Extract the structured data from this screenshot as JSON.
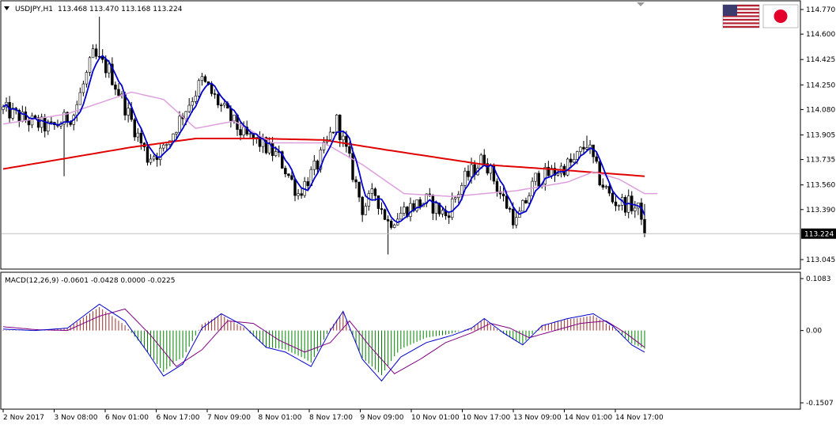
{
  "colors": {
    "background": "#ffffff",
    "candle": "#000000",
    "ma_fast": "#0000cc",
    "ma_mid": "#dda0dd",
    "ma_slow": "#e00000",
    "macd_up": "#a52a2a",
    "macd_down": "#008000",
    "macd_signal": "#800080",
    "macd_line": "#0000cc",
    "price_line": "#c0c0c0"
  },
  "icons": {
    "flag_left": "us-flag-icon",
    "flag_right": "japan-flag-icon"
  },
  "chart_data": [
    {
      "type": "candlestick",
      "title": "USDJPY,H1",
      "ohlc_header": "113.468 113.470 113.168 113.224",
      "ylim": [
        113.045,
        114.77
      ],
      "y_ticks": [
        "114.770",
        "114.600",
        "114.425",
        "114.250",
        "114.080",
        "113.905",
        "113.735",
        "113.560",
        "113.390",
        "113.045"
      ],
      "current_price": "113.224",
      "x_tick_labels": [
        "2 Nov 2017",
        "3 Nov 08:00",
        "6 Nov 01:00",
        "6 Nov 17:00",
        "7 Nov 09:00",
        "8 Nov 01:00",
        "8 Nov 17:00",
        "9 Nov 09:00",
        "10 Nov 01:00",
        "10 Nov 17:00",
        "13 Nov 09:00",
        "14 Nov 01:00",
        "14 Nov 17:00"
      ],
      "bars": 200,
      "close_path": [
        [
          0,
          114.08
        ],
        [
          8,
          114.0
        ],
        [
          15,
          113.95
        ],
        [
          22,
          114.05
        ],
        [
          28,
          114.45
        ],
        [
          33,
          114.35
        ],
        [
          38,
          114.1
        ],
        [
          45,
          113.75
        ],
        [
          50,
          113.8
        ],
        [
          56,
          114.05
        ],
        [
          62,
          114.28
        ],
        [
          68,
          114.1
        ],
        [
          75,
          113.9
        ],
        [
          80,
          113.85
        ],
        [
          86,
          113.75
        ],
        [
          92,
          113.5
        ],
        [
          98,
          113.7
        ],
        [
          104,
          114.0
        ],
        [
          108,
          113.72
        ],
        [
          112,
          113.4
        ],
        [
          116,
          113.5
        ],
        [
          120,
          113.3
        ],
        [
          126,
          113.4
        ],
        [
          132,
          113.45
        ],
        [
          138,
          113.35
        ],
        [
          144,
          113.6
        ],
        [
          150,
          113.75
        ],
        [
          155,
          113.5
        ],
        [
          160,
          113.3
        ],
        [
          166,
          113.6
        ],
        [
          172,
          113.65
        ],
        [
          178,
          113.72
        ],
        [
          182,
          113.85
        ],
        [
          186,
          113.6
        ],
        [
          190,
          113.45
        ],
        [
          196,
          113.42
        ],
        [
          200,
          113.35
        ]
      ],
      "high_spike": [
        [
          30,
          114.72
        ],
        [
          104,
          114.05
        ],
        [
          182,
          113.9
        ]
      ],
      "low_spike": [
        [
          19,
          113.62
        ],
        [
          120,
          113.08
        ],
        [
          200,
          113.2
        ]
      ],
      "ma_slow_path": [
        [
          0,
          113.67
        ],
        [
          40,
          113.82
        ],
        [
          60,
          113.88
        ],
        [
          80,
          113.88
        ],
        [
          100,
          113.87
        ],
        [
          120,
          113.8
        ],
        [
          150,
          113.7
        ],
        [
          170,
          113.67
        ],
        [
          200,
          113.62
        ]
      ],
      "ma_mid_path": [
        [
          0,
          113.98
        ],
        [
          20,
          114.05
        ],
        [
          40,
          114.2
        ],
        [
          50,
          114.15
        ],
        [
          60,
          113.95
        ],
        [
          72,
          114.0
        ],
        [
          84,
          113.85
        ],
        [
          100,
          113.85
        ],
        [
          112,
          113.7
        ],
        [
          125,
          113.5
        ],
        [
          140,
          113.48
        ],
        [
          160,
          113.52
        ],
        [
          176,
          113.58
        ],
        [
          184,
          113.65
        ],
        [
          192,
          113.6
        ],
        [
          200,
          113.5
        ]
      ]
    },
    {
      "type": "histogram",
      "title": "MACD(12,26,9) -0.0601 -0.0428 0.0000 -0.0225",
      "ylim": [
        -0.1507,
        0.1083
      ],
      "y_ticks": [
        "0.1083",
        "0.00",
        "-0.1507"
      ],
      "macd_path": [
        [
          0,
          0.003
        ],
        [
          10,
          0.0
        ],
        [
          20,
          0.005
        ],
        [
          30,
          0.055
        ],
        [
          38,
          0.02
        ],
        [
          45,
          -0.045
        ],
        [
          50,
          -0.095
        ],
        [
          56,
          -0.07
        ],
        [
          62,
          0.005
        ],
        [
          68,
          0.035
        ],
        [
          75,
          0.01
        ],
        [
          82,
          -0.035
        ],
        [
          88,
          -0.045
        ],
        [
          96,
          -0.075
        ],
        [
          102,
          0.0
        ],
        [
          106,
          0.04
        ],
        [
          112,
          -0.06
        ],
        [
          118,
          -0.105
        ],
        [
          124,
          -0.055
        ],
        [
          132,
          -0.025
        ],
        [
          140,
          -0.01
        ],
        [
          146,
          0.005
        ],
        [
          150,
          0.025
        ],
        [
          156,
          -0.005
        ],
        [
          162,
          -0.03
        ],
        [
          168,
          0.01
        ],
        [
          176,
          0.025
        ],
        [
          184,
          0.035
        ],
        [
          190,
          0.01
        ],
        [
          196,
          -0.03
        ],
        [
          200,
          -0.045
        ]
      ],
      "signal_path": [
        [
          0,
          0.008
        ],
        [
          10,
          0.002
        ],
        [
          20,
          0.0
        ],
        [
          30,
          0.03
        ],
        [
          38,
          0.045
        ],
        [
          46,
          -0.01
        ],
        [
          54,
          -0.075
        ],
        [
          62,
          -0.04
        ],
        [
          70,
          0.02
        ],
        [
          78,
          0.015
        ],
        [
          86,
          -0.02
        ],
        [
          94,
          -0.045
        ],
        [
          102,
          -0.025
        ],
        [
          108,
          0.02
        ],
        [
          114,
          -0.03
        ],
        [
          122,
          -0.09
        ],
        [
          130,
          -0.06
        ],
        [
          138,
          -0.025
        ],
        [
          146,
          -0.005
        ],
        [
          152,
          0.015
        ],
        [
          158,
          0.005
        ],
        [
          164,
          -0.015
        ],
        [
          172,
          0.0
        ],
        [
          180,
          0.015
        ],
        [
          188,
          0.02
        ],
        [
          194,
          -0.005
        ],
        [
          200,
          -0.035
        ]
      ]
    }
  ]
}
